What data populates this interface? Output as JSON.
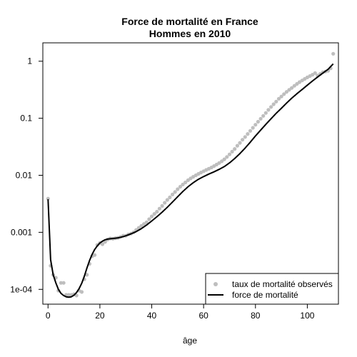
{
  "chart_data": {
    "type": "scatter",
    "title": "Force de mortalité en France",
    "subtitle": "Hommes en 2010",
    "xlabel": "âge",
    "ylabel": "",
    "xlim": [
      -2,
      112
    ],
    "ylim": [
      5.5e-05,
      2.1
    ],
    "y_scale": "log",
    "grid": false,
    "legend_position": "bottom-right",
    "x_ticks": [
      0,
      20,
      40,
      60,
      80,
      100
    ],
    "x_tick_labels": [
      "0",
      "20",
      "40",
      "60",
      "80",
      "100"
    ],
    "y_ticks": [
      0.0001,
      0.001,
      0.01,
      0.1,
      1
    ],
    "y_tick_labels": [
      "1e-04",
      "0.001",
      "0.01",
      "0.1",
      "1"
    ],
    "series": [
      {
        "name": "taux de mortalité observés",
        "kind": "points",
        "color": "#bebebe",
        "x": [
          0,
          1,
          2,
          3,
          4,
          5,
          6,
          7,
          8,
          9,
          10,
          11,
          12,
          13,
          14,
          15,
          16,
          17,
          18,
          19,
          20,
          21,
          22,
          23,
          24,
          25,
          26,
          27,
          28,
          29,
          30,
          31,
          32,
          33,
          34,
          35,
          36,
          37,
          38,
          39,
          40,
          41,
          42,
          43,
          44,
          45,
          46,
          47,
          48,
          49,
          50,
          51,
          52,
          53,
          54,
          55,
          56,
          57,
          58,
          59,
          60,
          61,
          62,
          63,
          64,
          65,
          66,
          67,
          68,
          69,
          70,
          71,
          72,
          73,
          74,
          75,
          76,
          77,
          78,
          79,
          80,
          81,
          82,
          83,
          84,
          85,
          86,
          87,
          88,
          89,
          90,
          91,
          92,
          93,
          94,
          95,
          96,
          97,
          98,
          99,
          100,
          101,
          102,
          103,
          104,
          105,
          106,
          107,
          108,
          109,
          110
        ],
        "y": [
          0.0039,
          0.00026,
          0.00018,
          0.00016,
          9.5e-05,
          0.00013,
          0.00013,
          8e-05,
          8e-05,
          8e-05,
          8.2e-05,
          7.8e-05,
          9.5e-05,
          9e-05,
          0.00015,
          0.00018,
          0.00028,
          0.00038,
          0.0004,
          0.0006,
          0.00065,
          0.00062,
          0.00068,
          0.00075,
          0.00078,
          0.00077,
          0.00079,
          0.0008,
          0.00083,
          0.00087,
          0.00087,
          0.00092,
          0.00095,
          0.001,
          0.0011,
          0.0012,
          0.0013,
          0.0014,
          0.0015,
          0.0017,
          0.0019,
          0.0021,
          0.0023,
          0.0026,
          0.0029,
          0.0033,
          0.0037,
          0.0041,
          0.0046,
          0.0051,
          0.0057,
          0.0063,
          0.0069,
          0.0075,
          0.0082,
          0.0088,
          0.0094,
          0.01,
          0.0106,
          0.0112,
          0.0118,
          0.0124,
          0.013,
          0.0137,
          0.0145,
          0.0154,
          0.0164,
          0.0176,
          0.0191,
          0.021,
          0.0233,
          0.026,
          0.029,
          0.033,
          0.037,
          0.042,
          0.047,
          0.053,
          0.06,
          0.068,
          0.077,
          0.087,
          0.098,
          0.11,
          0.124,
          0.14,
          0.158,
          0.176,
          0.196,
          0.22,
          0.24,
          0.265,
          0.29,
          0.315,
          0.34,
          0.37,
          0.4,
          0.43,
          0.46,
          0.49,
          0.52,
          0.55,
          0.58,
          0.62,
          0.56,
          0.6,
          0.64,
          0.66,
          0.68,
          0.75,
          1.35
        ]
      },
      {
        "name": "force de mortalité",
        "kind": "line",
        "color": "#000000",
        "x": [
          0,
          1,
          2,
          3,
          4,
          5,
          6,
          7,
          8,
          9,
          10,
          11,
          12,
          13,
          14,
          15,
          16,
          17,
          18,
          19,
          20,
          21,
          22,
          23,
          24,
          25,
          26,
          27,
          28,
          29,
          30,
          32,
          34,
          36,
          38,
          40,
          42,
          44,
          46,
          48,
          50,
          52,
          54,
          56,
          58,
          60,
          62,
          64,
          66,
          68,
          70,
          72,
          74,
          76,
          78,
          80,
          82,
          84,
          86,
          88,
          90,
          92,
          94,
          96,
          98,
          100,
          102,
          104,
          106,
          108,
          110
        ],
        "y": [
          0.0038,
          0.00033,
          0.00018,
          0.00013,
          0.0001,
          8.5e-05,
          7.8e-05,
          7.4e-05,
          7.3e-05,
          7.4e-05,
          7.9e-05,
          8.8e-05,
          0.000103,
          0.000128,
          0.00017,
          0.000235,
          0.00032,
          0.00041,
          0.0005,
          0.00058,
          0.00065,
          0.0007,
          0.00074,
          0.00076,
          0.00077,
          0.00078,
          0.00079,
          0.0008,
          0.00082,
          0.00084,
          0.00087,
          0.00094,
          0.00103,
          0.00116,
          0.00134,
          0.00158,
          0.00188,
          0.00226,
          0.00275,
          0.0034,
          0.0042,
          0.0052,
          0.0063,
          0.0074,
          0.0085,
          0.0095,
          0.0105,
          0.0115,
          0.0127,
          0.0142,
          0.0165,
          0.0197,
          0.024,
          0.03,
          0.038,
          0.049,
          0.062,
          0.078,
          0.098,
          0.122,
          0.15,
          0.185,
          0.225,
          0.27,
          0.32,
          0.38,
          0.45,
          0.53,
          0.62,
          0.72,
          0.9
        ]
      }
    ]
  }
}
